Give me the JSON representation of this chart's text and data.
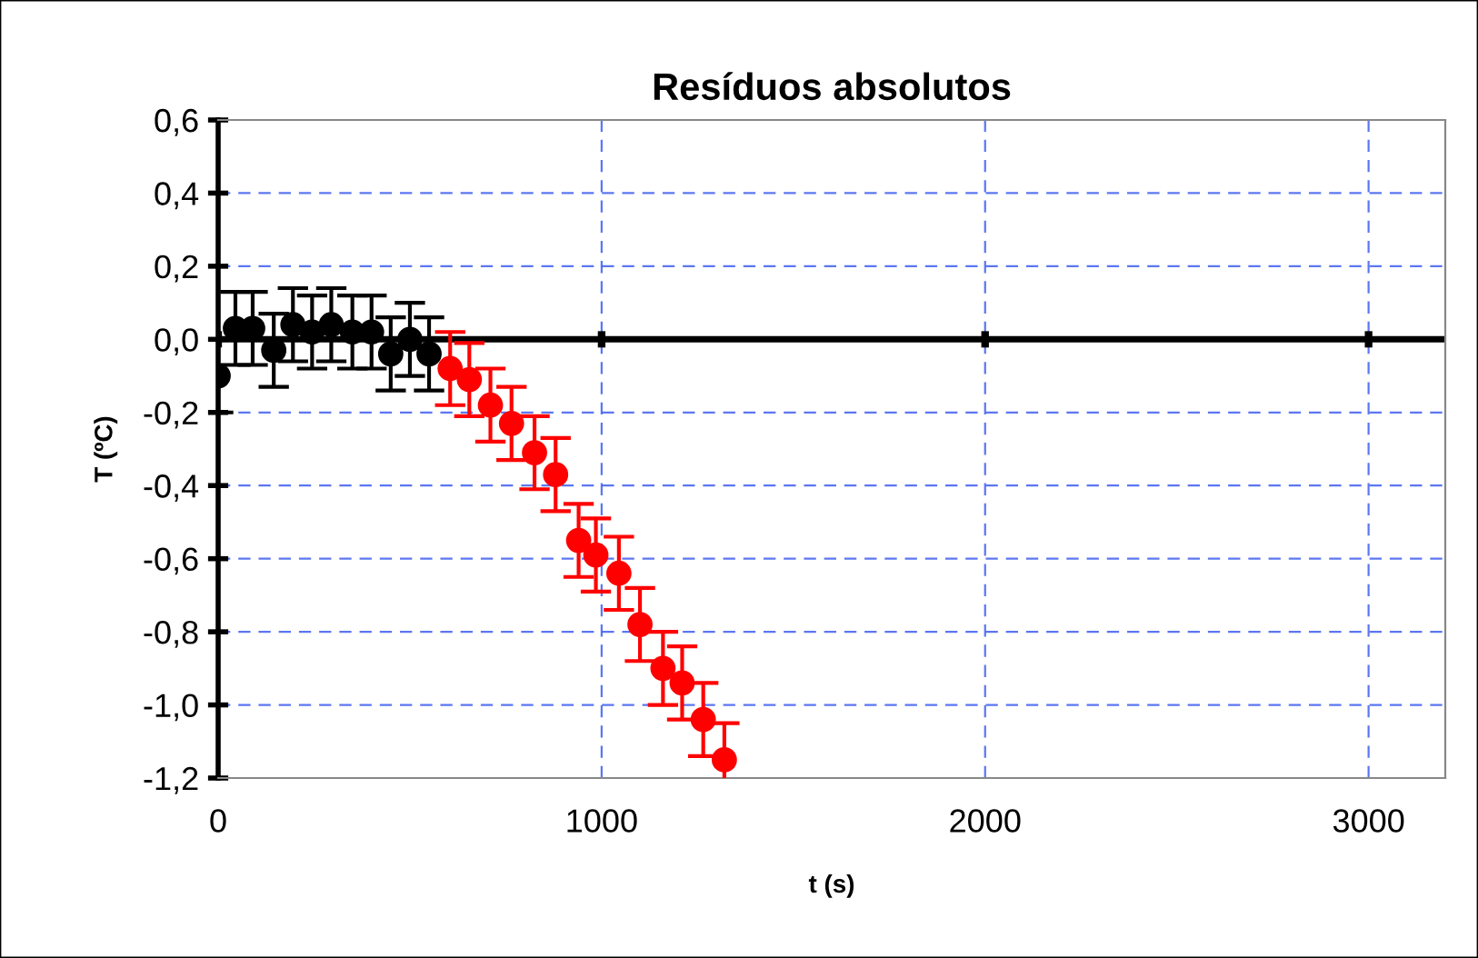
{
  "chart_data": {
    "type": "scatter",
    "title": "Resíduos absolutos",
    "xlabel": "t (s)",
    "ylabel": "T (ºC)",
    "series": [
      {
        "color": "#000000",
        "x": [
          0,
          45,
          90,
          145,
          195,
          245,
          295,
          350,
          400,
          450,
          500,
          550
        ],
        "values": [
          -0.1,
          0.03,
          0.03,
          -0.03,
          0.04,
          0.02,
          0.04,
          0.02,
          0.02,
          -0.04,
          0.0,
          -0.04
        ],
        "errors": [
          0.1,
          0.1,
          0.1,
          0.1,
          0.1,
          0.1,
          0.1,
          0.1,
          0.1,
          0.1,
          0.1,
          0.1
        ]
      },
      {
        "color": "#ff0000",
        "x": [
          605,
          655,
          710,
          765,
          825,
          880,
          940,
          985,
          1045,
          1100,
          1160,
          1210,
          1265,
          1320
        ],
        "values": [
          -0.08,
          -0.11,
          -0.18,
          -0.23,
          -0.31,
          -0.37,
          -0.55,
          -0.59,
          -0.64,
          -0.78,
          -0.9,
          -0.94,
          -1.04,
          -1.15
        ],
        "errors": [
          0.1,
          0.1,
          0.1,
          0.1,
          0.1,
          0.1,
          0.1,
          0.1,
          0.1,
          0.1,
          0.1,
          0.1,
          0.1,
          0.1
        ]
      }
    ],
    "xlim": [
      0,
      3200
    ],
    "xticks": [
      0,
      1000,
      2000,
      3000
    ],
    "ylim": [
      -1.2,
      0.6
    ],
    "yticks": [
      {
        "value": -1.2,
        "label": "-1,2"
      },
      {
        "value": -1.0,
        "label": "-1,0"
      },
      {
        "value": -0.8,
        "label": "-0,8"
      },
      {
        "value": -0.6,
        "label": "-0,6"
      },
      {
        "value": -0.4,
        "label": "-0,4"
      },
      {
        "value": -0.2,
        "label": "-0,2"
      },
      {
        "value": 0.0,
        "label": "0,0"
      },
      {
        "value": 0.2,
        "label": "0,2"
      },
      {
        "value": 0.4,
        "label": "0,4"
      },
      {
        "value": 0.6,
        "label": "0,6"
      }
    ],
    "ref_lines": [
      {
        "axis": "y",
        "value": 0,
        "color": "#000000"
      }
    ],
    "grid": true,
    "marker": "circle",
    "legend": false
  }
}
